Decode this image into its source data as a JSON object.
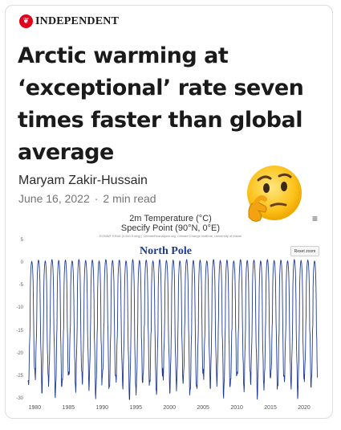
{
  "publication": {
    "name": "INDEPENDENT"
  },
  "article": {
    "headline": "Arctic warming at ‘exceptional’ rate seven times faster than global average",
    "author": "Maryam Zakir-Hussain",
    "date": "June 16, 2022",
    "separator": "·",
    "read_time": "2 min read"
  },
  "emoji": "thinking-face-icon",
  "chart_data": {
    "type": "line",
    "title": "2m Temperature (°C)",
    "subtitle": "Specify Point (90°N, 0°E)",
    "credit": "ECMWF ERA5 (0.5x0.5 deg) | ClimateReanalyzer.org, Climate Change Institute, University of Maine",
    "annotation": "North Pole",
    "reset_label": "Reset zoom",
    "ylim": [
      -30,
      5
    ],
    "yticks": [
      "5",
      "0",
      "-5",
      "-10",
      "-15",
      "-20",
      "-25",
      "-30"
    ],
    "xlim": [
      1979,
      2022.5
    ],
    "xticks": [
      "1980",
      "1985",
      "1990",
      "1995",
      "2000",
      "2005",
      "2010",
      "2015",
      "2020"
    ],
    "series_color": "#1f3a93",
    "series": [
      {
        "period": "annual cycle",
        "summer_max": [
          0.5,
          0.8,
          0.6,
          0.9,
          0.7,
          0.8,
          0.6,
          0.9,
          0.7,
          0.8,
          0.6,
          0.9,
          0.7,
          0.8,
          0.6,
          0.9,
          0.7,
          0.8,
          0.6,
          0.9,
          0.7,
          0.8,
          0.6,
          0.9,
          0.7,
          0.8,
          0.6,
          0.9,
          0.7,
          0.8,
          0.6,
          0.9,
          0.7,
          0.8,
          0.6,
          0.9,
          0.7,
          0.8,
          0.6,
          0.9,
          0.7,
          0.8,
          0.6
        ],
        "winter_min": [
          -27,
          -25,
          -28,
          -26,
          -29,
          -27,
          -25,
          -28,
          -26,
          -27,
          -29,
          -25,
          -28,
          -26,
          -27,
          -30,
          -28,
          -26,
          -27,
          -29,
          -25,
          -28,
          -27,
          -26,
          -29,
          -28,
          -25,
          -27,
          -26,
          -29,
          -27,
          -25,
          -28,
          -26,
          -29,
          -27,
          -25,
          -28,
          -26,
          -27,
          -29,
          -25,
          -27
        ]
      }
    ]
  }
}
